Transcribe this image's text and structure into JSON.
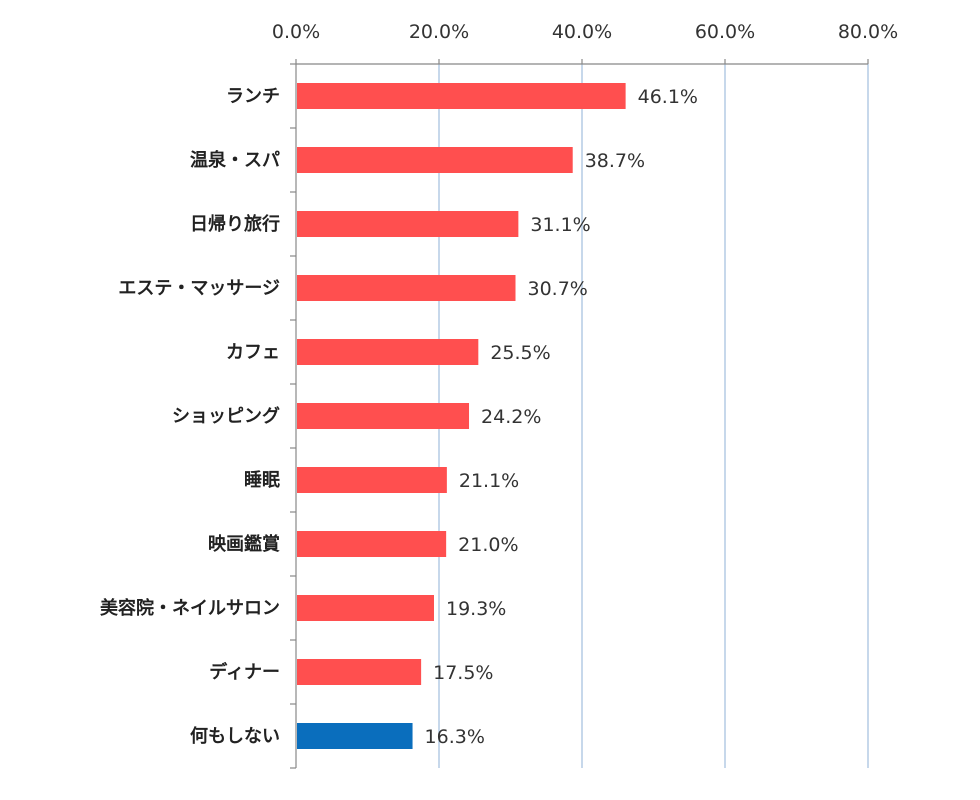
{
  "chart_data": {
    "type": "bar",
    "orientation": "horizontal",
    "categories": [
      "ランチ",
      "温泉・スパ",
      "日帰り旅行",
      "エステ・マッサージ",
      "カフェ",
      "ショッピング",
      "睡眠",
      "映画鑑賞",
      "美容院・ネイルサロン",
      "ディナー",
      "何もしない"
    ],
    "values": [
      46.1,
      38.7,
      31.1,
      30.7,
      25.5,
      24.2,
      21.1,
      21.0,
      19.3,
      17.5,
      16.3
    ],
    "value_labels": [
      "46.1%",
      "38.7%",
      "31.1%",
      "30.7%",
      "25.5%",
      "24.2%",
      "21.1%",
      "21.0%",
      "19.3%",
      "17.5%",
      "16.3%"
    ],
    "xlim": [
      0,
      80
    ],
    "x_ticks": [
      0,
      20,
      40,
      60,
      80
    ],
    "x_tick_labels": [
      "0.0%",
      "20.0%",
      "40.0%",
      "60.0%",
      "80.0%"
    ],
    "x_axis_position": "top",
    "grid": "vertical",
    "colors": {
      "bar": "#ff4f4f",
      "highlight_bar": "#0a6ebd",
      "grid": "#a9c4e0",
      "axis": "#888888"
    },
    "highlight_index": 10
  }
}
